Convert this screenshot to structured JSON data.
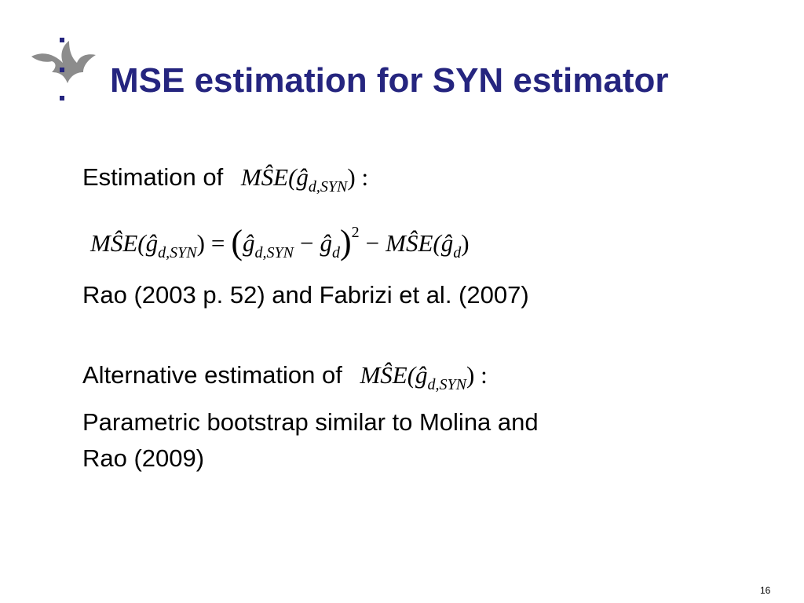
{
  "title": "MSE estimation for SYN estimator",
  "line1": {
    "text": "Estimation of",
    "formula": [
      "MŜE(",
      "ĝ",
      "d,SYN",
      ") :"
    ]
  },
  "main_formula": [
    "MŜE(",
    "ĝ",
    "d,SYN",
    ")",
    "=",
    "(",
    "ĝ",
    "d,SYN",
    "−",
    "ĝ",
    "d",
    ")",
    "2",
    "−",
    "MŜE(",
    "ĝ",
    "d",
    ")"
  ],
  "reference": "Rao (2003 p. 52) and Fabrizi et al. (2007)",
  "line2": {
    "text": "Alternative estimation of",
    "formula": [
      "MŜE(",
      "ĝ",
      "d,SYN",
      ") :"
    ]
  },
  "bootstrap": [
    "Parametric bootstrap similar to Molina and",
    "Rao (2009)"
  ],
  "page_number": "16"
}
